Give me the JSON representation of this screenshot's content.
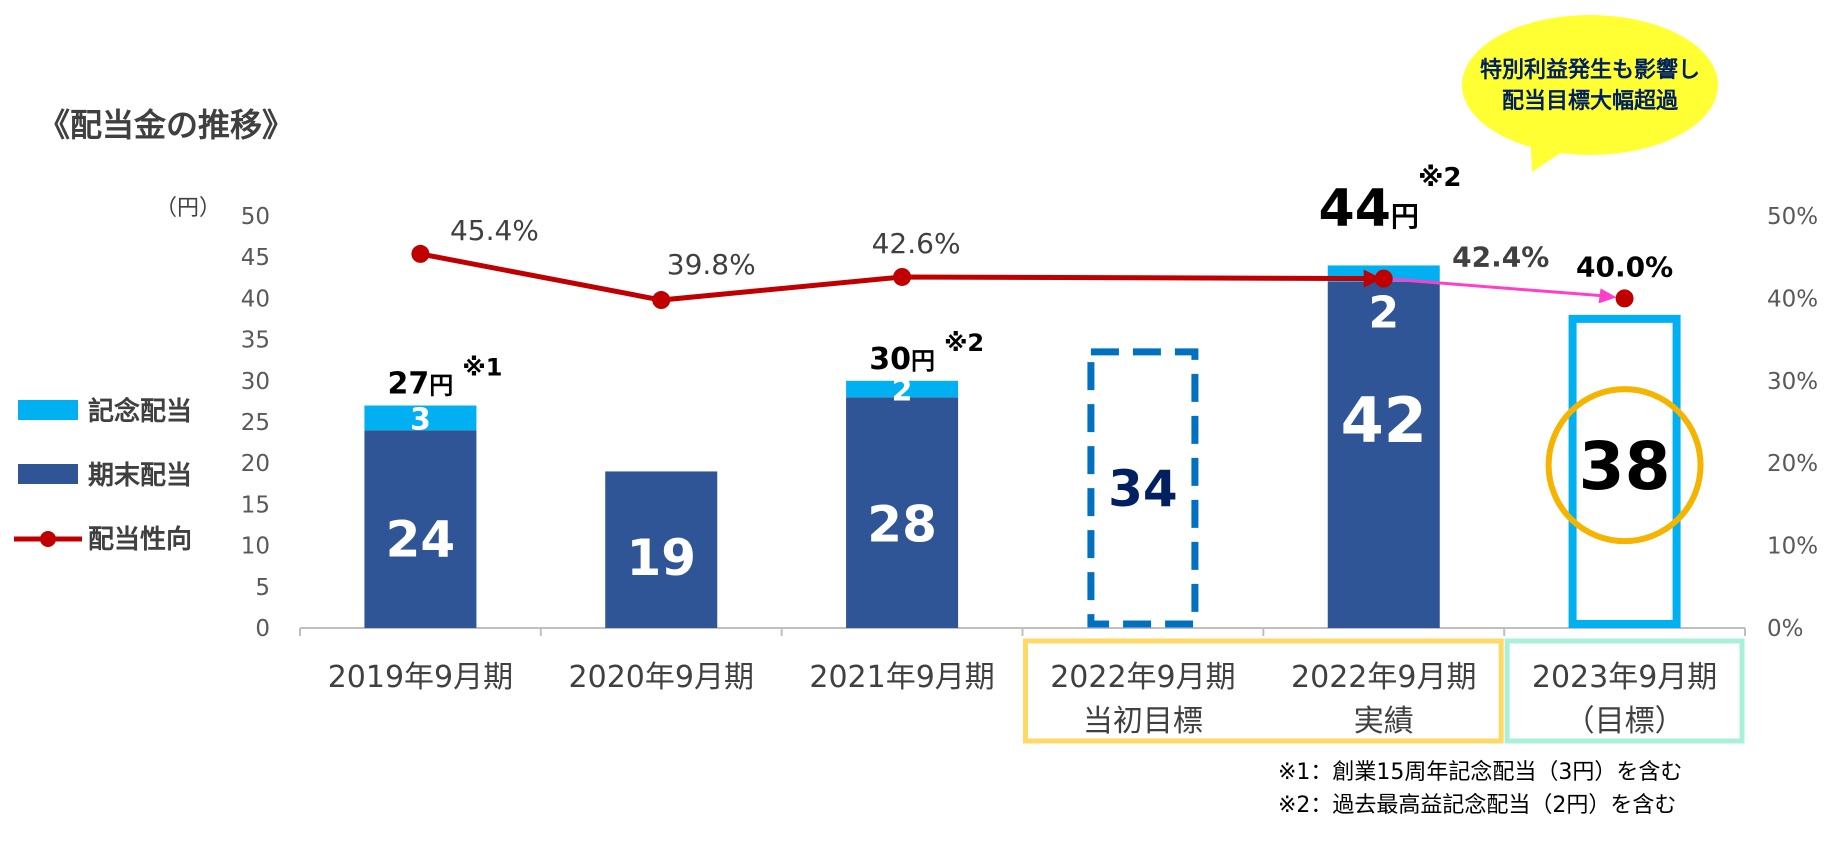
{
  "page": {
    "title": "《配当金の推移》"
  },
  "chart_data": {
    "type": "bar",
    "left_axis_unit": "（円）",
    "left_ticks": [
      "0",
      "5",
      "10",
      "15",
      "20",
      "25",
      "30",
      "35",
      "40",
      "45",
      "50"
    ],
    "right_ticks": [
      "0%",
      "10%",
      "20%",
      "30%",
      "40%",
      "50%"
    ],
    "ylim": [
      0,
      50
    ],
    "y2lim": [
      0,
      0.5
    ],
    "categories": [
      [
        "2019年9月期"
      ],
      [
        "2020年9月期"
      ],
      [
        "2021年9月期"
      ],
      [
        "2022年9月期",
        "当初目標"
      ],
      [
        "2022年9月期",
        "実績"
      ],
      [
        "2023年9月期",
        "（目標）"
      ]
    ],
    "series": [
      {
        "name": "期末配当",
        "color": "#2f5597",
        "values": [
          24,
          19,
          28,
          34,
          42,
          38
        ],
        "labels": [
          "24",
          "19",
          "28",
          "34",
          "42",
          "38"
        ]
      },
      {
        "name": "記念配当",
        "color": "#00b0f0",
        "values": [
          3,
          0,
          2,
          0,
          2,
          0
        ],
        "labels": [
          "3",
          "",
          "2",
          "",
          "2",
          ""
        ]
      },
      {
        "name": "配当性向",
        "color": "#c00000",
        "type": "line",
        "values": [
          0.454,
          0.398,
          0.426,
          null,
          0.424,
          0.4
        ],
        "labels": [
          "45.4%",
          "39.8%",
          "42.6%",
          "",
          "42.4%",
          "40.0%"
        ]
      }
    ],
    "bar_styles": [
      "solid",
      "solid",
      "solid",
      "dashed-outline",
      "solid",
      "outline-circled"
    ],
    "outline_colors": {
      "dashed": "#0070c0",
      "target": "#00b0f0",
      "circle": "#f4b400"
    },
    "line_connector_color": "#ff3fc8",
    "totals": [
      {
        "index": 0,
        "value": "27",
        "unit": "円",
        "note": "※1"
      },
      {
        "index": 2,
        "value": "30",
        "unit": "円",
        "note": "※2"
      },
      {
        "index": 4,
        "value": "44",
        "unit": "円",
        "note": "※2"
      }
    ],
    "legend": {
      "position": "left",
      "items": [
        {
          "label": "記念配当",
          "color": "#00b0f0",
          "kind": "box"
        },
        {
          "label": "期末配当",
          "color": "#2f5597",
          "kind": "box"
        },
        {
          "label": "配当性向",
          "color": "#c00000",
          "kind": "line"
        }
      ]
    },
    "category_boxes": [
      {
        "from": 3,
        "to": 4,
        "color": "#ffd966"
      },
      {
        "from": 5,
        "to": 5,
        "color": "#a9f0da"
      }
    ],
    "callout": {
      "lines": [
        "特別利益発生も影響し",
        "配当目標大幅超過"
      ],
      "color": "#ffff33",
      "text_color": "#002060"
    },
    "footnotes": [
      "※1：創業15周年記念配当（3円）を含む",
      "※2：過去最高益記念配当（2円）を含む"
    ]
  }
}
